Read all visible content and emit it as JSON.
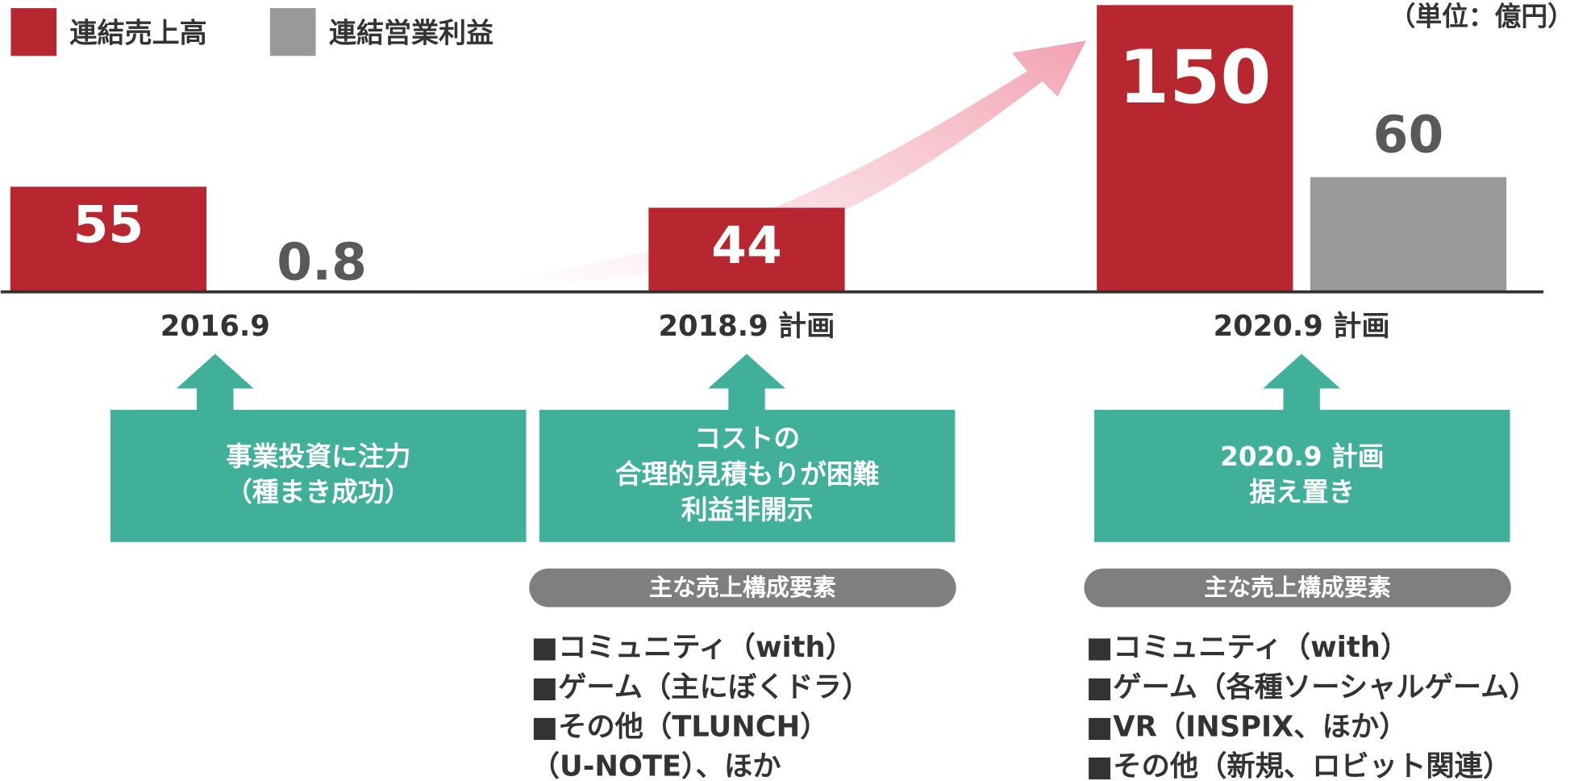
{
  "chart_data": {
    "type": "bar",
    "unit": "（単位：億円）",
    "categories": [
      "2016.9",
      "2018.9 計画",
      "2020.9 計画"
    ],
    "series": [
      {
        "name": "連結売上高",
        "color": "#b8272f",
        "values": [
          55,
          44,
          150
        ]
      },
      {
        "name": "連結営業利益",
        "color": "#999999",
        "values": [
          0.8,
          null,
          60
        ]
      }
    ],
    "ylim": [
      0,
      150
    ],
    "legend": "top-left"
  },
  "notes": [
    {
      "lines": [
        "事業投資に注力",
        "（種まき成功）"
      ]
    },
    {
      "lines": [
        "コストの",
        "合理的見積もりが困難",
        "利益非開示"
      ],
      "badge": "主な売上構成要素",
      "items": [
        "■コミュニティ（with）",
        "■ゲーム（主にぼくドラ）",
        "■その他（TLUNCH）",
        "（U-NOTE）、ほか"
      ]
    },
    {
      "lines": [
        "2020.9 計画",
        "据え置き"
      ],
      "badge": "主な売上構成要素",
      "items": [
        "■コミュニティ（with）",
        "■ゲーム（各種ソーシャルゲーム）",
        "■VR（INSPIX、ほか）",
        "■その他（新規、ロビット関連）"
      ]
    }
  ]
}
